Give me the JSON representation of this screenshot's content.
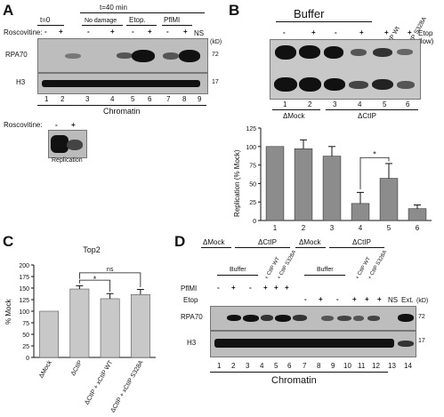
{
  "panels": {
    "A": {
      "label": "A",
      "time_top": "t=40 min",
      "time_zero": "t=0",
      "groups": [
        "No damage",
        "Etop.",
        "PflMI"
      ],
      "ns": "NS",
      "roscovitine": "Roscovitine:",
      "signs": [
        "-",
        "+",
        "-",
        "+",
        "-",
        "+",
        "-",
        "+"
      ],
      "rows": [
        "RPA70",
        "H3"
      ],
      "kd": "(kD)",
      "mw": [
        "72",
        "17"
      ],
      "lanes": [
        "1",
        "2",
        "3",
        "4",
        "5",
        "6",
        "7",
        "8",
        "9"
      ],
      "footer": "Chromatin",
      "inset_roscovitine": "Roscovitine:",
      "inset_signs": [
        "-",
        "+"
      ],
      "inset_caption": "Replication"
    },
    "B": {
      "label": "B",
      "buffer": "Buffer",
      "xctip_wt": "+ xCtIP Wt",
      "xctip_s": "+ xCtIP S328A",
      "etop": "Etop",
      "etop_sub": "(low)",
      "signs": [
        "-",
        "+",
        "-",
        "+",
        "+",
        "+"
      ],
      "lanes": [
        "1",
        "2",
        "3",
        "4",
        "5",
        "6"
      ],
      "delta_mock": "ΔMock",
      "delta_ctip": "ΔCtIP",
      "sig": "*"
    },
    "C": {
      "label": "C",
      "title": "Top2",
      "sig1": "*",
      "sig2": "ns",
      "categories": [
        "ΔMock",
        "ΔCtIP",
        "ΔCtIP + xCtIP WT",
        "ΔCtIP + xCtIP S328A"
      ]
    },
    "D": {
      "label": "D",
      "headers": [
        "ΔMock",
        "ΔCtIP",
        "ΔMock",
        "ΔCtIP"
      ],
      "buffer1": "Buffer",
      "buffer2": "Buffer",
      "ctip_wt1": "+ CtIP WT",
      "ctip_s1": "+ CtIP S328A",
      "ctip_wt2": "+ CtIP WT",
      "ctip_s2": "+ CtIP S328A",
      "pflmi": "PflMI",
      "etop": "Etop",
      "pflmi_signs": [
        "-",
        "+",
        "-",
        "+",
        "+",
        "+"
      ],
      "etop_signs": [
        "-",
        "+",
        "-",
        "+",
        "+",
        "+"
      ],
      "ns": "NS",
      "ext": "Ext.",
      "kd": "(kD)",
      "rows": [
        "RPA70",
        "H3"
      ],
      "mw": [
        "72",
        "17"
      ],
      "lanes": [
        "1",
        "2",
        "3",
        "4",
        "5",
        "6",
        "7",
        "8",
        "9",
        "10",
        "11",
        "12",
        "13",
        "14"
      ],
      "footer": "Chromatin"
    }
  },
  "chart_data": [
    {
      "type": "bar",
      "categories": [
        "1",
        "2",
        "3",
        "4",
        "5",
        "6"
      ],
      "values": [
        100,
        97,
        87,
        23,
        57,
        16
      ],
      "errors": [
        0,
        12,
        13,
        15,
        20,
        5
      ],
      "ylabel": "Replication (% Mock)",
      "ylim": [
        0,
        125
      ],
      "yticks": [
        0,
        25,
        50,
        75,
        100,
        125
      ],
      "color": "#8c8c8c"
    },
    {
      "type": "bar",
      "categories": [
        "ΔMock",
        "ΔCtIP",
        "ΔCtIP + xCtIP WT",
        "ΔCtIP + xCtIP S328A"
      ],
      "values": [
        100,
        148,
        127,
        136
      ],
      "errors": [
        0,
        7,
        11,
        11
      ],
      "title": "Top2",
      "ylabel": "% Mock",
      "ylim": [
        0,
        200
      ],
      "yticks": [
        0,
        25,
        50,
        75,
        100,
        125,
        150,
        175,
        200
      ],
      "color": "#c8c8c8"
    }
  ]
}
